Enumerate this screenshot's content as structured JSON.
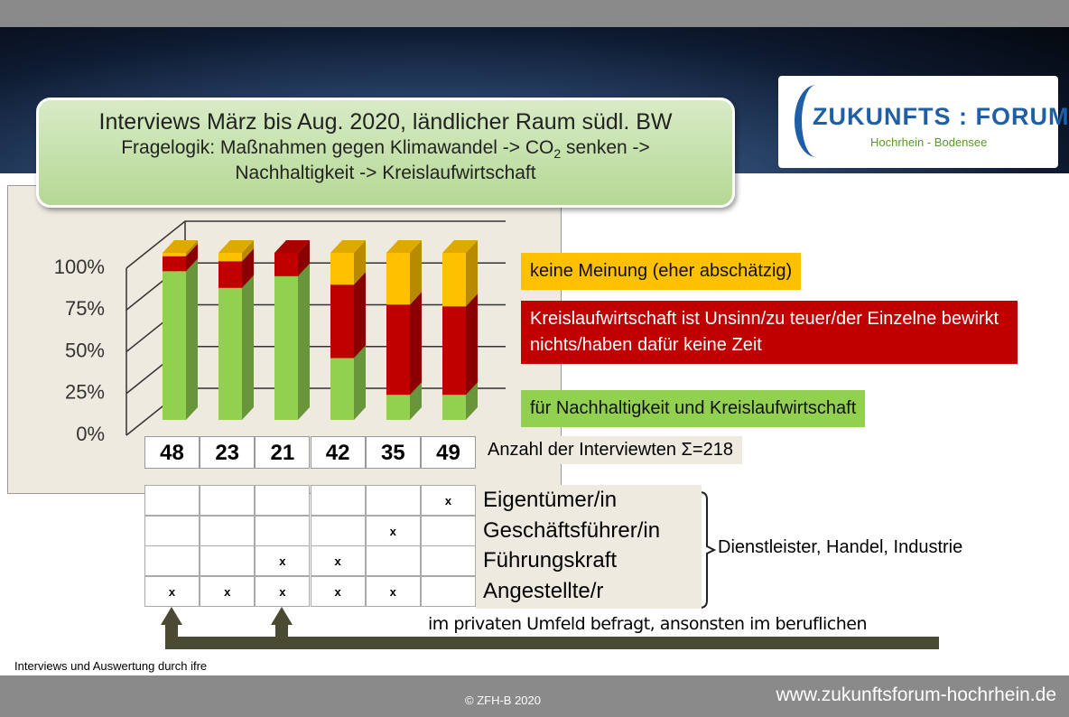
{
  "header": {
    "title": "Interviews März bis Aug. 2020, ländlicher Raum südl. BW",
    "subtitle_parts": [
      "Fragelogik: Maßnahmen gegen Klimawandel -> CO",
      "2",
      " senken ->",
      "Nachhaltigkeit -> Kreislaufwirtschaft"
    ]
  },
  "logo": {
    "name": "ZUKUNFTS : FORUM",
    "region": "Hochrhein - Bodensee"
  },
  "chart_data": {
    "type": "bar",
    "stacked": true,
    "categories": [
      "48",
      "23",
      "21",
      "42",
      "35",
      "49"
    ],
    "series": [
      {
        "name": "keine Meinung (eher abschätzig)",
        "color": "#ffc000",
        "values": [
          2,
          5,
          0,
          19,
          31,
          32
        ]
      },
      {
        "name": "Kreislaufwirtschaft ist Unsinn/zu teuer/der Einzelne bewirkt nichts/haben dafür keine Zeit",
        "color": "#c00000",
        "values": [
          9,
          16,
          14,
          44,
          54,
          53
        ]
      },
      {
        "name": "für Nachhaltigkeit und Kreislaufwirtschaft",
        "color": "#92d050",
        "values": [
          89,
          79,
          86,
          37,
          15,
          15
        ]
      }
    ],
    "ylim": [
      0,
      100
    ],
    "yticks": [
      {
        "value": 0,
        "label": "0%"
      },
      {
        "value": 25,
        "label": "25%"
      },
      {
        "value": 50,
        "label": "50%"
      },
      {
        "value": 75,
        "label": "75%"
      },
      {
        "value": 100,
        "label": "100%"
      }
    ],
    "grid": true
  },
  "table": {
    "count_label": "Anzahl der Interviewten Σ=218",
    "rows": [
      {
        "label": "Eigentümer/in",
        "x": [
          null,
          null,
          null,
          null,
          null,
          "x"
        ]
      },
      {
        "label": "Geschäftsführer/in",
        "x": [
          null,
          null,
          null,
          null,
          "x",
          null
        ]
      },
      {
        "label": "Führungskraft",
        "x": [
          null,
          null,
          "x",
          "x",
          null,
          null
        ]
      },
      {
        "label": "Angestellte/r",
        "x": [
          "x",
          "x",
          "x",
          "x",
          "x",
          null
        ]
      }
    ],
    "group_label": "Dienstleister, Handel, Industrie",
    "note": "im privaten Umfeld befragt, ansonsten im beruflichen"
  },
  "footer": {
    "source": "Interviews  und Auswertung  durch ifre",
    "copyright": "© ZFH-B 2020",
    "url": "www.zukunftsforum-hochrhein.de"
  }
}
